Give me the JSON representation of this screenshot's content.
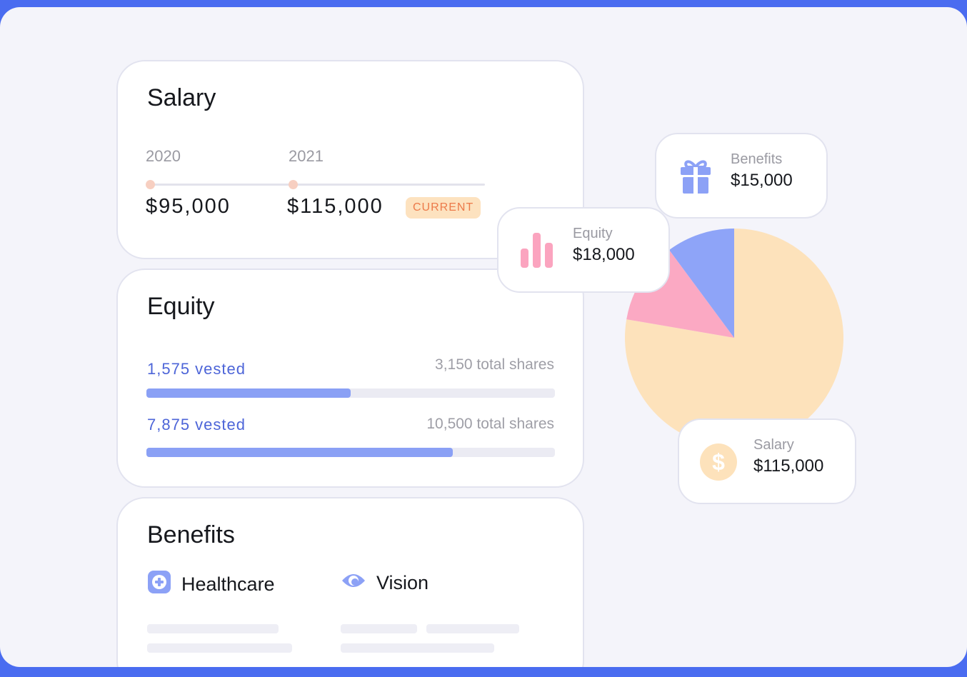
{
  "salary": {
    "title": "Salary",
    "points": [
      {
        "year": "2020",
        "amount": "$95,000"
      },
      {
        "year": "2021",
        "amount": "$115,000",
        "badge": "CURRENT"
      }
    ]
  },
  "equity": {
    "title": "Equity",
    "grants": [
      {
        "vested": "1,575 vested",
        "total": "3,150 total shares",
        "progress": 0.5
      },
      {
        "vested": "7,875 vested",
        "total": "10,500 total shares",
        "progress": 0.75
      }
    ]
  },
  "benefits": {
    "title": "Benefits",
    "items": [
      {
        "label": "Healthcare",
        "icon": "plus-icon"
      },
      {
        "label": "Vision",
        "icon": "eye-icon"
      }
    ]
  },
  "chips": {
    "benefits": {
      "label": "Benefits",
      "value": "$15,000",
      "icon": "gift-icon"
    },
    "equity": {
      "label": "Equity",
      "value": "$18,000",
      "icon": "bar-chart-icon"
    },
    "salary": {
      "label": "Salary",
      "value": "$115,000",
      "icon": "dollar-icon"
    }
  },
  "chart_data": {
    "type": "pie",
    "categories": [
      "Salary",
      "Equity",
      "Benefits"
    ],
    "values": [
      115000,
      18000,
      15000
    ],
    "colors": [
      "#fde2bb",
      "#fba9c3",
      "#8ea4f8"
    ]
  },
  "colors": {
    "frame": "#4a6cf0",
    "background": "#f4f4fa",
    "accent": "#4d65d8",
    "bar": "#8aa0f5"
  }
}
